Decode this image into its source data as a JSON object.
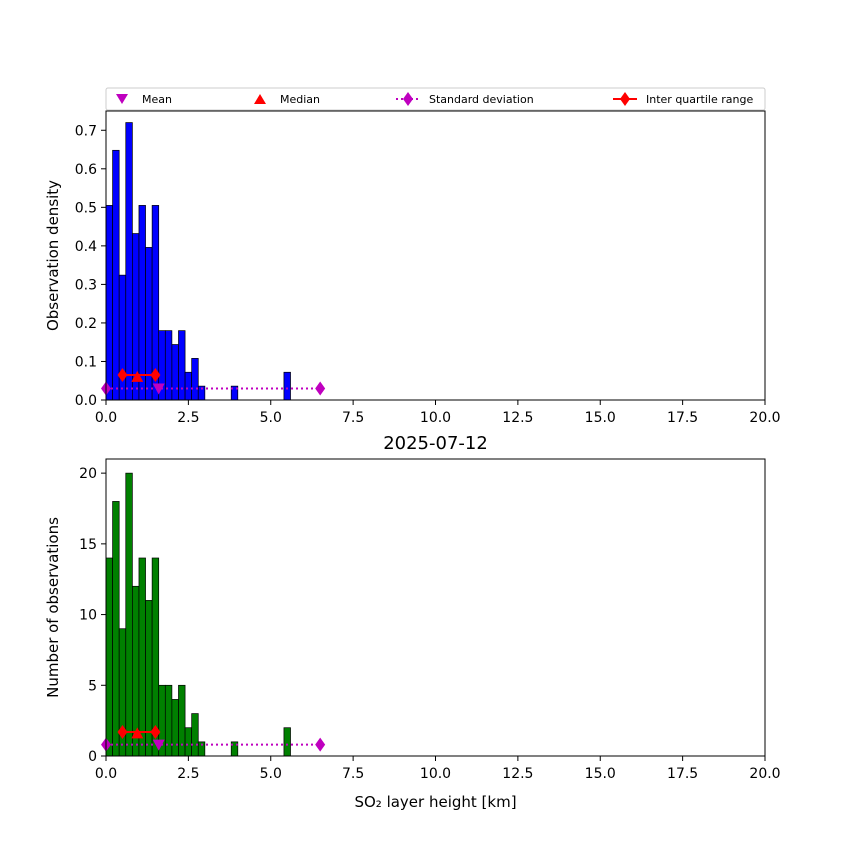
{
  "legend": {
    "entries": [
      {
        "key": "mean",
        "label": "Mean",
        "marker": "triangle-down",
        "color": "#bf00bf"
      },
      {
        "key": "median",
        "label": "Median",
        "marker": "triangle-up",
        "color": "#ff0000"
      },
      {
        "key": "std",
        "label": "Standard deviation",
        "marker": "diamond-dotted-line",
        "color": "#bf00bf"
      },
      {
        "key": "iqr",
        "label": "Inter quartile range",
        "marker": "diamond-solid-line",
        "color": "#ff0000"
      }
    ]
  },
  "chart_data": [
    {
      "type": "bar",
      "name": "density-histogram",
      "title": "",
      "xlabel": "",
      "ylabel": "Observation density",
      "xlim": [
        0,
        20
      ],
      "ylim": [
        0,
        0.75
      ],
      "xticks": [
        "0.0",
        "2.5",
        "5.0",
        "7.5",
        "10.0",
        "12.5",
        "15.0",
        "17.5",
        "20.0"
      ],
      "yticks": [
        "0.0",
        "0.1",
        "0.2",
        "0.3",
        "0.4",
        "0.5",
        "0.6",
        "0.7"
      ],
      "bar_color": "#0000ff",
      "bin_width": 0.2,
      "bins": [
        {
          "x": 0.0,
          "y": 0.505
        },
        {
          "x": 0.2,
          "y": 0.648
        },
        {
          "x": 0.4,
          "y": 0.324
        },
        {
          "x": 0.6,
          "y": 0.72
        },
        {
          "x": 0.8,
          "y": 0.432
        },
        {
          "x": 1.0,
          "y": 0.505
        },
        {
          "x": 1.2,
          "y": 0.396
        },
        {
          "x": 1.4,
          "y": 0.505
        },
        {
          "x": 1.6,
          "y": 0.18
        },
        {
          "x": 1.8,
          "y": 0.18
        },
        {
          "x": 2.0,
          "y": 0.144
        },
        {
          "x": 2.2,
          "y": 0.18
        },
        {
          "x": 2.4,
          "y": 0.072
        },
        {
          "x": 2.6,
          "y": 0.108
        },
        {
          "x": 2.8,
          "y": 0.036
        },
        {
          "x": 3.8,
          "y": 0.036
        },
        {
          "x": 5.4,
          "y": 0.072
        }
      ],
      "stats": {
        "mean": {
          "x": 1.6,
          "y": 0.03
        },
        "median": {
          "x": 0.95,
          "y": 0.06
        },
        "std": {
          "x1": 0.0,
          "x2": 6.5,
          "y": 0.03
        },
        "iqr": {
          "x1": 0.5,
          "x2": 1.5,
          "y": 0.065
        }
      }
    },
    {
      "type": "bar",
      "name": "count-histogram",
      "title": "2025-07-12",
      "xlabel": "SO₂ layer height [km]",
      "ylabel": "Number of observations",
      "xlim": [
        0,
        20
      ],
      "ylim": [
        0,
        21
      ],
      "xticks": [
        "0.0",
        "2.5",
        "5.0",
        "7.5",
        "10.0",
        "12.5",
        "15.0",
        "17.5",
        "20.0"
      ],
      "yticks": [
        "0",
        "5",
        "10",
        "15",
        "20"
      ],
      "bar_color": "#008000",
      "bin_width": 0.2,
      "bins": [
        {
          "x": 0.0,
          "y": 14
        },
        {
          "x": 0.2,
          "y": 18
        },
        {
          "x": 0.4,
          "y": 9
        },
        {
          "x": 0.6,
          "y": 20
        },
        {
          "x": 0.8,
          "y": 12
        },
        {
          "x": 1.0,
          "y": 14
        },
        {
          "x": 1.2,
          "y": 11
        },
        {
          "x": 1.4,
          "y": 14
        },
        {
          "x": 1.6,
          "y": 5
        },
        {
          "x": 1.8,
          "y": 5
        },
        {
          "x": 2.0,
          "y": 4
        },
        {
          "x": 2.2,
          "y": 5
        },
        {
          "x": 2.4,
          "y": 2
        },
        {
          "x": 2.6,
          "y": 3
        },
        {
          "x": 2.8,
          "y": 1
        },
        {
          "x": 3.8,
          "y": 1
        },
        {
          "x": 5.4,
          "y": 2
        }
      ],
      "stats": {
        "mean": {
          "x": 1.6,
          "y": 0.8
        },
        "median": {
          "x": 0.95,
          "y": 1.6
        },
        "std": {
          "x1": 0.0,
          "x2": 6.5,
          "y": 0.8
        },
        "iqr": {
          "x1": 0.5,
          "x2": 1.5,
          "y": 1.7
        }
      }
    }
  ]
}
